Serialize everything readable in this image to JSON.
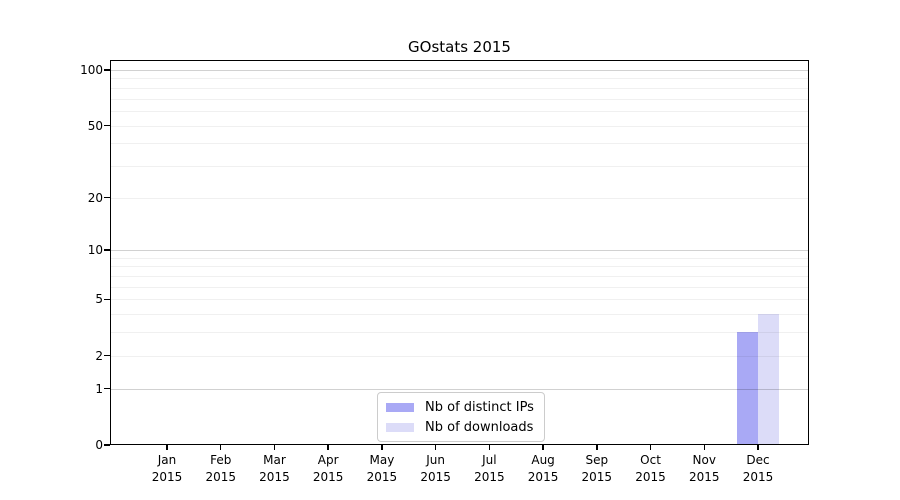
{
  "chart_data": {
    "type": "bar",
    "title": "GOstats 2015",
    "categories": [
      "Jan 2015",
      "Feb 2015",
      "Mar 2015",
      "Apr 2015",
      "May 2015",
      "Jun 2015",
      "Jul 2015",
      "Aug 2015",
      "Sep 2015",
      "Oct 2015",
      "Nov 2015",
      "Dec 2015"
    ],
    "series": [
      {
        "name": "Nb of distinct IPs",
        "color": "#a9a9f5",
        "values": [
          0,
          0,
          0,
          0,
          0,
          0,
          0,
          0,
          0,
          0,
          0,
          3
        ]
      },
      {
        "name": "Nb of downloads",
        "color": "#dcdcf8",
        "values": [
          0,
          0,
          0,
          0,
          0,
          0,
          0,
          0,
          0,
          0,
          0,
          4
        ]
      }
    ],
    "xlabel": "",
    "ylabel": "",
    "y_scale": "log1p",
    "ylim": [
      0,
      100
    ],
    "y_tick_values": [
      0,
      1,
      2,
      5,
      10,
      20,
      50,
      100
    ],
    "grid_major_values": [
      1,
      10,
      100
    ],
    "grid_minor_values": [
      2,
      3,
      4,
      5,
      6,
      7,
      8,
      9,
      20,
      30,
      40,
      50,
      60,
      70,
      80,
      90
    ],
    "grid": "horizontal",
    "legend_position": "bottom-center",
    "colors": {
      "grid_major": "rgba(0,0,0,0.18)",
      "grid_minor": "rgba(0,0,0,0.06)",
      "axis": "#000000",
      "legend_border": "#cccccc",
      "background": "#ffffff"
    }
  }
}
